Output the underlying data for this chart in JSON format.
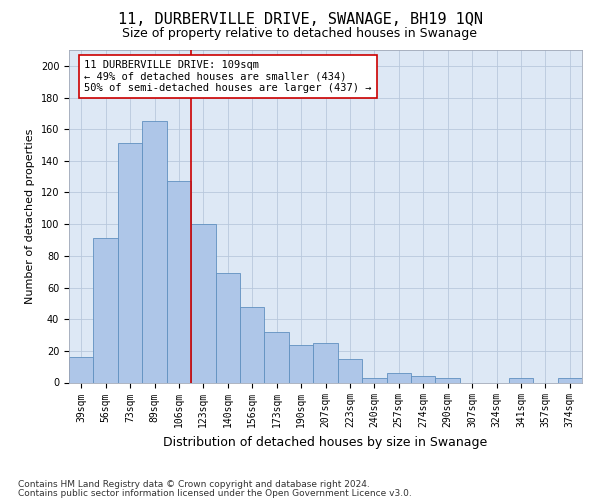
{
  "title": "11, DURBERVILLE DRIVE, SWANAGE, BH19 1QN",
  "subtitle": "Size of property relative to detached houses in Swanage",
  "xlabel": "Distribution of detached houses by size in Swanage",
  "ylabel": "Number of detached properties",
  "bar_labels": [
    "39sqm",
    "56sqm",
    "73sqm",
    "89sqm",
    "106sqm",
    "123sqm",
    "140sqm",
    "156sqm",
    "173sqm",
    "190sqm",
    "207sqm",
    "223sqm",
    "240sqm",
    "257sqm",
    "274sqm",
    "290sqm",
    "307sqm",
    "324sqm",
    "341sqm",
    "357sqm",
    "374sqm"
  ],
  "bar_values": [
    16,
    91,
    151,
    165,
    127,
    100,
    69,
    48,
    32,
    24,
    25,
    15,
    3,
    6,
    4,
    3,
    0,
    0,
    3,
    0,
    3
  ],
  "bar_color": "#aec6e8",
  "bar_edgecolor": "#6090c0",
  "vline_x_index": 4,
  "vline_color": "#cc0000",
  "annotation_text": "11 DURBERVILLE DRIVE: 109sqm\n← 49% of detached houses are smaller (434)\n50% of semi-detached houses are larger (437) →",
  "annotation_box_color": "#ffffff",
  "annotation_box_edgecolor": "#cc0000",
  "ylim": [
    0,
    210
  ],
  "yticks": [
    0,
    20,
    40,
    60,
    80,
    100,
    120,
    140,
    160,
    180,
    200
  ],
  "background_color": "#ffffff",
  "plot_bg_color": "#dde8f5",
  "grid_color": "#b8c8dc",
  "footer_line1": "Contains HM Land Registry data © Crown copyright and database right 2024.",
  "footer_line2": "Contains public sector information licensed under the Open Government Licence v3.0.",
  "title_fontsize": 11,
  "subtitle_fontsize": 9,
  "xlabel_fontsize": 9,
  "ylabel_fontsize": 8,
  "tick_fontsize": 7,
  "annotation_fontsize": 7.5,
  "footer_fontsize": 6.5
}
